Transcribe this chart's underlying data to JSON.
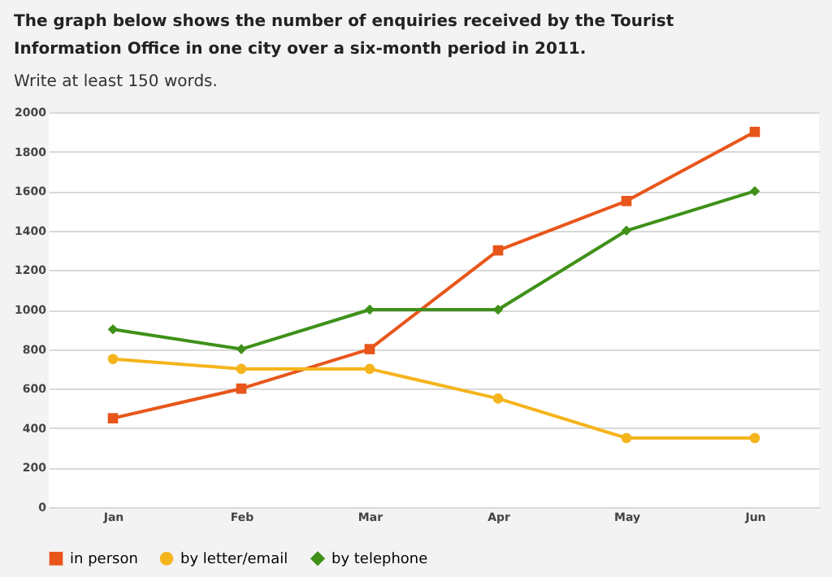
{
  "chart_data": {
    "type": "line",
    "title": "The graph below shows the number of enquiries received by the Tourist Information Office in one city over a six-month period in 2011.",
    "subtitle": "Write at least 150 words.",
    "categories": [
      "Jan",
      "Feb",
      "Mar",
      "Apr",
      "May",
      "Jun"
    ],
    "series": [
      {
        "name": "in person",
        "color": "#e8561b",
        "marker": "square",
        "values": [
          450,
          600,
          800,
          1300,
          1550,
          1900
        ]
      },
      {
        "name": "by letter/email",
        "color": "#f5b41c",
        "marker": "circle",
        "values": [
          750,
          700,
          700,
          550,
          350,
          350
        ]
      },
      {
        "name": "by telephone",
        "color": "#3f9119",
        "marker": "diamond",
        "values": [
          900,
          800,
          1000,
          1000,
          1400,
          1600
        ]
      }
    ],
    "ylim": [
      0,
      2000
    ],
    "yticks": [
      0,
      200,
      400,
      600,
      800,
      1000,
      1200,
      1400,
      1600,
      1800,
      2000
    ],
    "grid": "y",
    "legend": "bottom",
    "line_style": "solid"
  }
}
